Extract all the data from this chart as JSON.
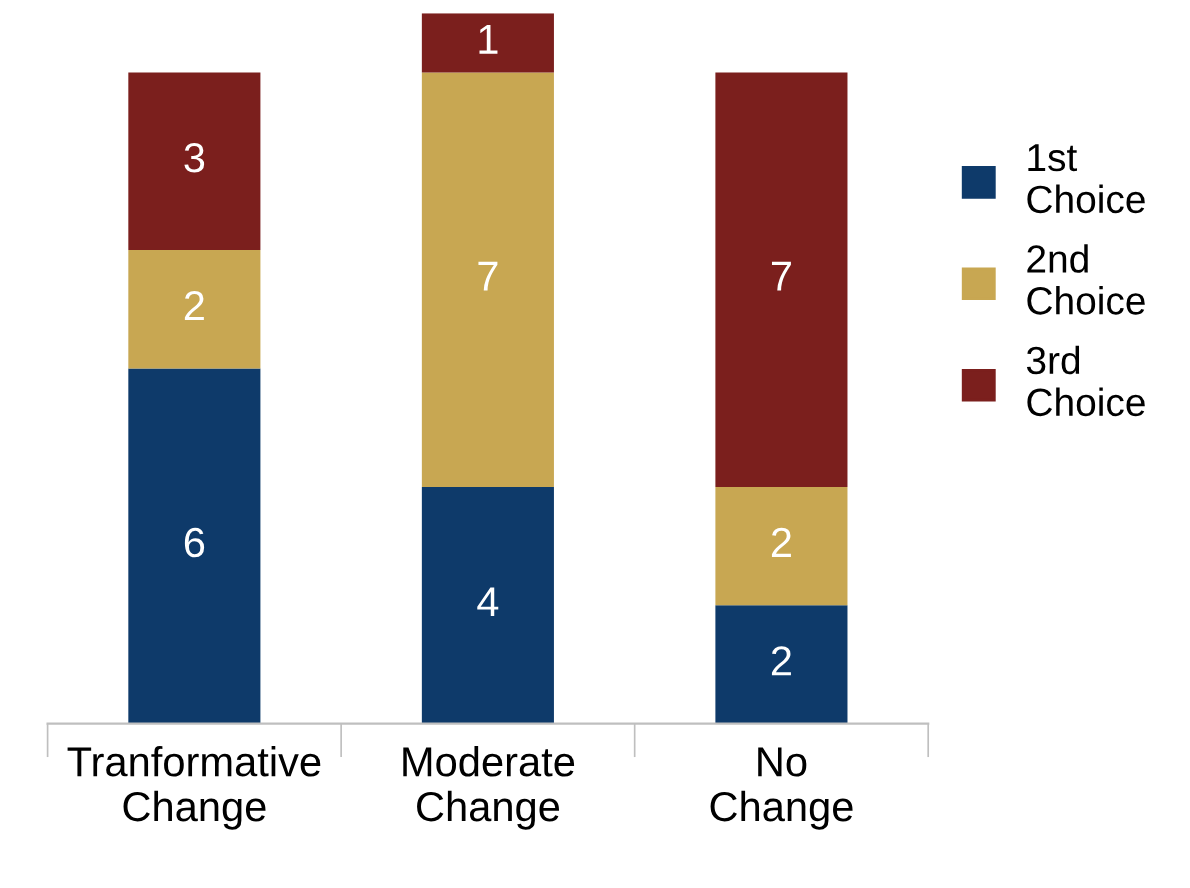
{
  "chart_data": {
    "type": "bar",
    "stacked": true,
    "data_labels": true,
    "legend": "right",
    "grid": false,
    "categories": [
      "Tranformative\nChange",
      "Moderate\nChange",
      "No\nChange"
    ],
    "series": [
      {
        "name": "1st Choice",
        "color": "#0e3a6a",
        "values": [
          6,
          4,
          2
        ]
      },
      {
        "name": "2nd Choice",
        "color": "#c8a752",
        "values": [
          2,
          7,
          2
        ]
      },
      {
        "name": "3rd Choice",
        "color": "#7b1f1d",
        "values": [
          3,
          1,
          7
        ]
      }
    ]
  }
}
